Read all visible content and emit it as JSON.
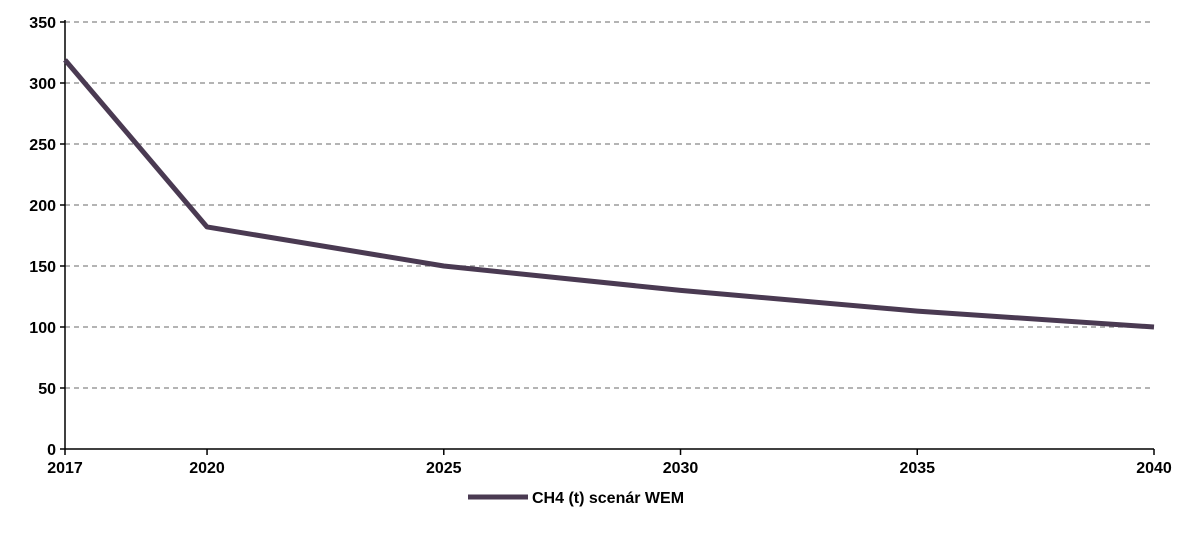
{
  "chart_data": {
    "type": "line",
    "x": [
      "2017",
      "2020",
      "2025",
      "2030",
      "2035",
      "2040"
    ],
    "series": [
      {
        "name": "CH4 (t) scenár WEM",
        "values": [
          319,
          182,
          150,
          130,
          113,
          100
        ],
        "color": "#4a3a52"
      }
    ],
    "ylim": [
      0,
      350
    ],
    "yticks": [
      0,
      50,
      100,
      150,
      200,
      250,
      300,
      350
    ],
    "grid": "horizontal-dashed",
    "legend": "bottom-center"
  }
}
